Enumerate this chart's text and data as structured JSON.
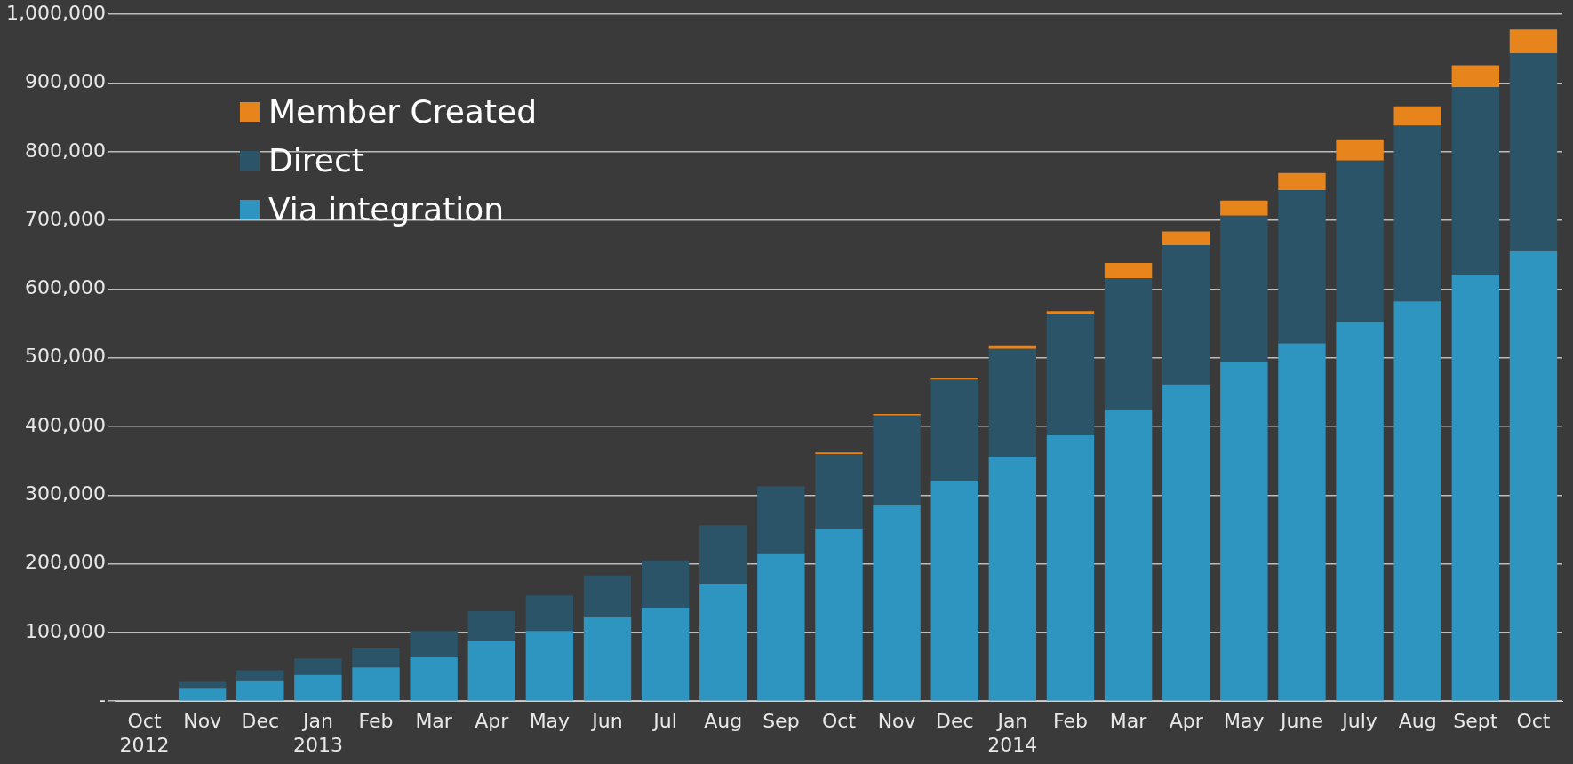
{
  "chart_data": {
    "type": "bar",
    "stacked": true,
    "legend": "top left",
    "grid": "y",
    "categories": [
      "Oct\n2012",
      "Nov",
      "Dec",
      "Jan\n2013",
      "Feb",
      "Mar",
      "Apr",
      "May",
      "Jun",
      "Jul",
      "Aug",
      "Sep",
      "Oct",
      "Nov",
      "Dec",
      "Jan\n2014",
      "Feb",
      "Mar",
      "Apr",
      "May",
      "June",
      "July",
      "Aug",
      "Sept",
      "Oct"
    ],
    "series": [
      {
        "name": "Via integration",
        "color": "#2e95c0",
        "values": [
          0,
          18000,
          29000,
          38000,
          49000,
          65000,
          88000,
          102000,
          122000,
          136000,
          171000,
          214000,
          250000,
          285000,
          320000,
          356000,
          387000,
          424000,
          461000,
          493000,
          521000,
          552000,
          582000,
          621000,
          655000
        ]
      },
      {
        "name": "Direct",
        "color": "#2b5468",
        "values": [
          0,
          10000,
          16000,
          24000,
          29000,
          37000,
          43000,
          52000,
          61000,
          69000,
          85000,
          99000,
          110000,
          131000,
          148000,
          157000,
          177000,
          192000,
          203000,
          214000,
          223000,
          235000,
          256000,
          273000,
          288000
        ]
      },
      {
        "name": "Member Created",
        "color": "#e8841c",
        "values": [
          0,
          0,
          0,
          0,
          0,
          0,
          0,
          0,
          0,
          0,
          0,
          0,
          2000,
          2000,
          3000,
          5000,
          4000,
          22000,
          20000,
          22000,
          25000,
          30000,
          28000,
          32000,
          35000
        ]
      }
    ],
    "ylim": [
      0,
      1000000
    ],
    "yticks": [
      {
        "value": 0,
        "label": "-"
      },
      {
        "value": 100000,
        "label": "100,000"
      },
      {
        "value": 200000,
        "label": "200,000"
      },
      {
        "value": 300000,
        "label": "300,000"
      },
      {
        "value": 400000,
        "label": "400,000"
      },
      {
        "value": 500000,
        "label": "500,000"
      },
      {
        "value": 600000,
        "label": "600,000"
      },
      {
        "value": 700000,
        "label": "700,000"
      },
      {
        "value": 800000,
        "label": "800,000"
      },
      {
        "value": 900000,
        "label": "900,000"
      },
      {
        "value": 1000000,
        "label": "1,000,000"
      }
    ]
  }
}
